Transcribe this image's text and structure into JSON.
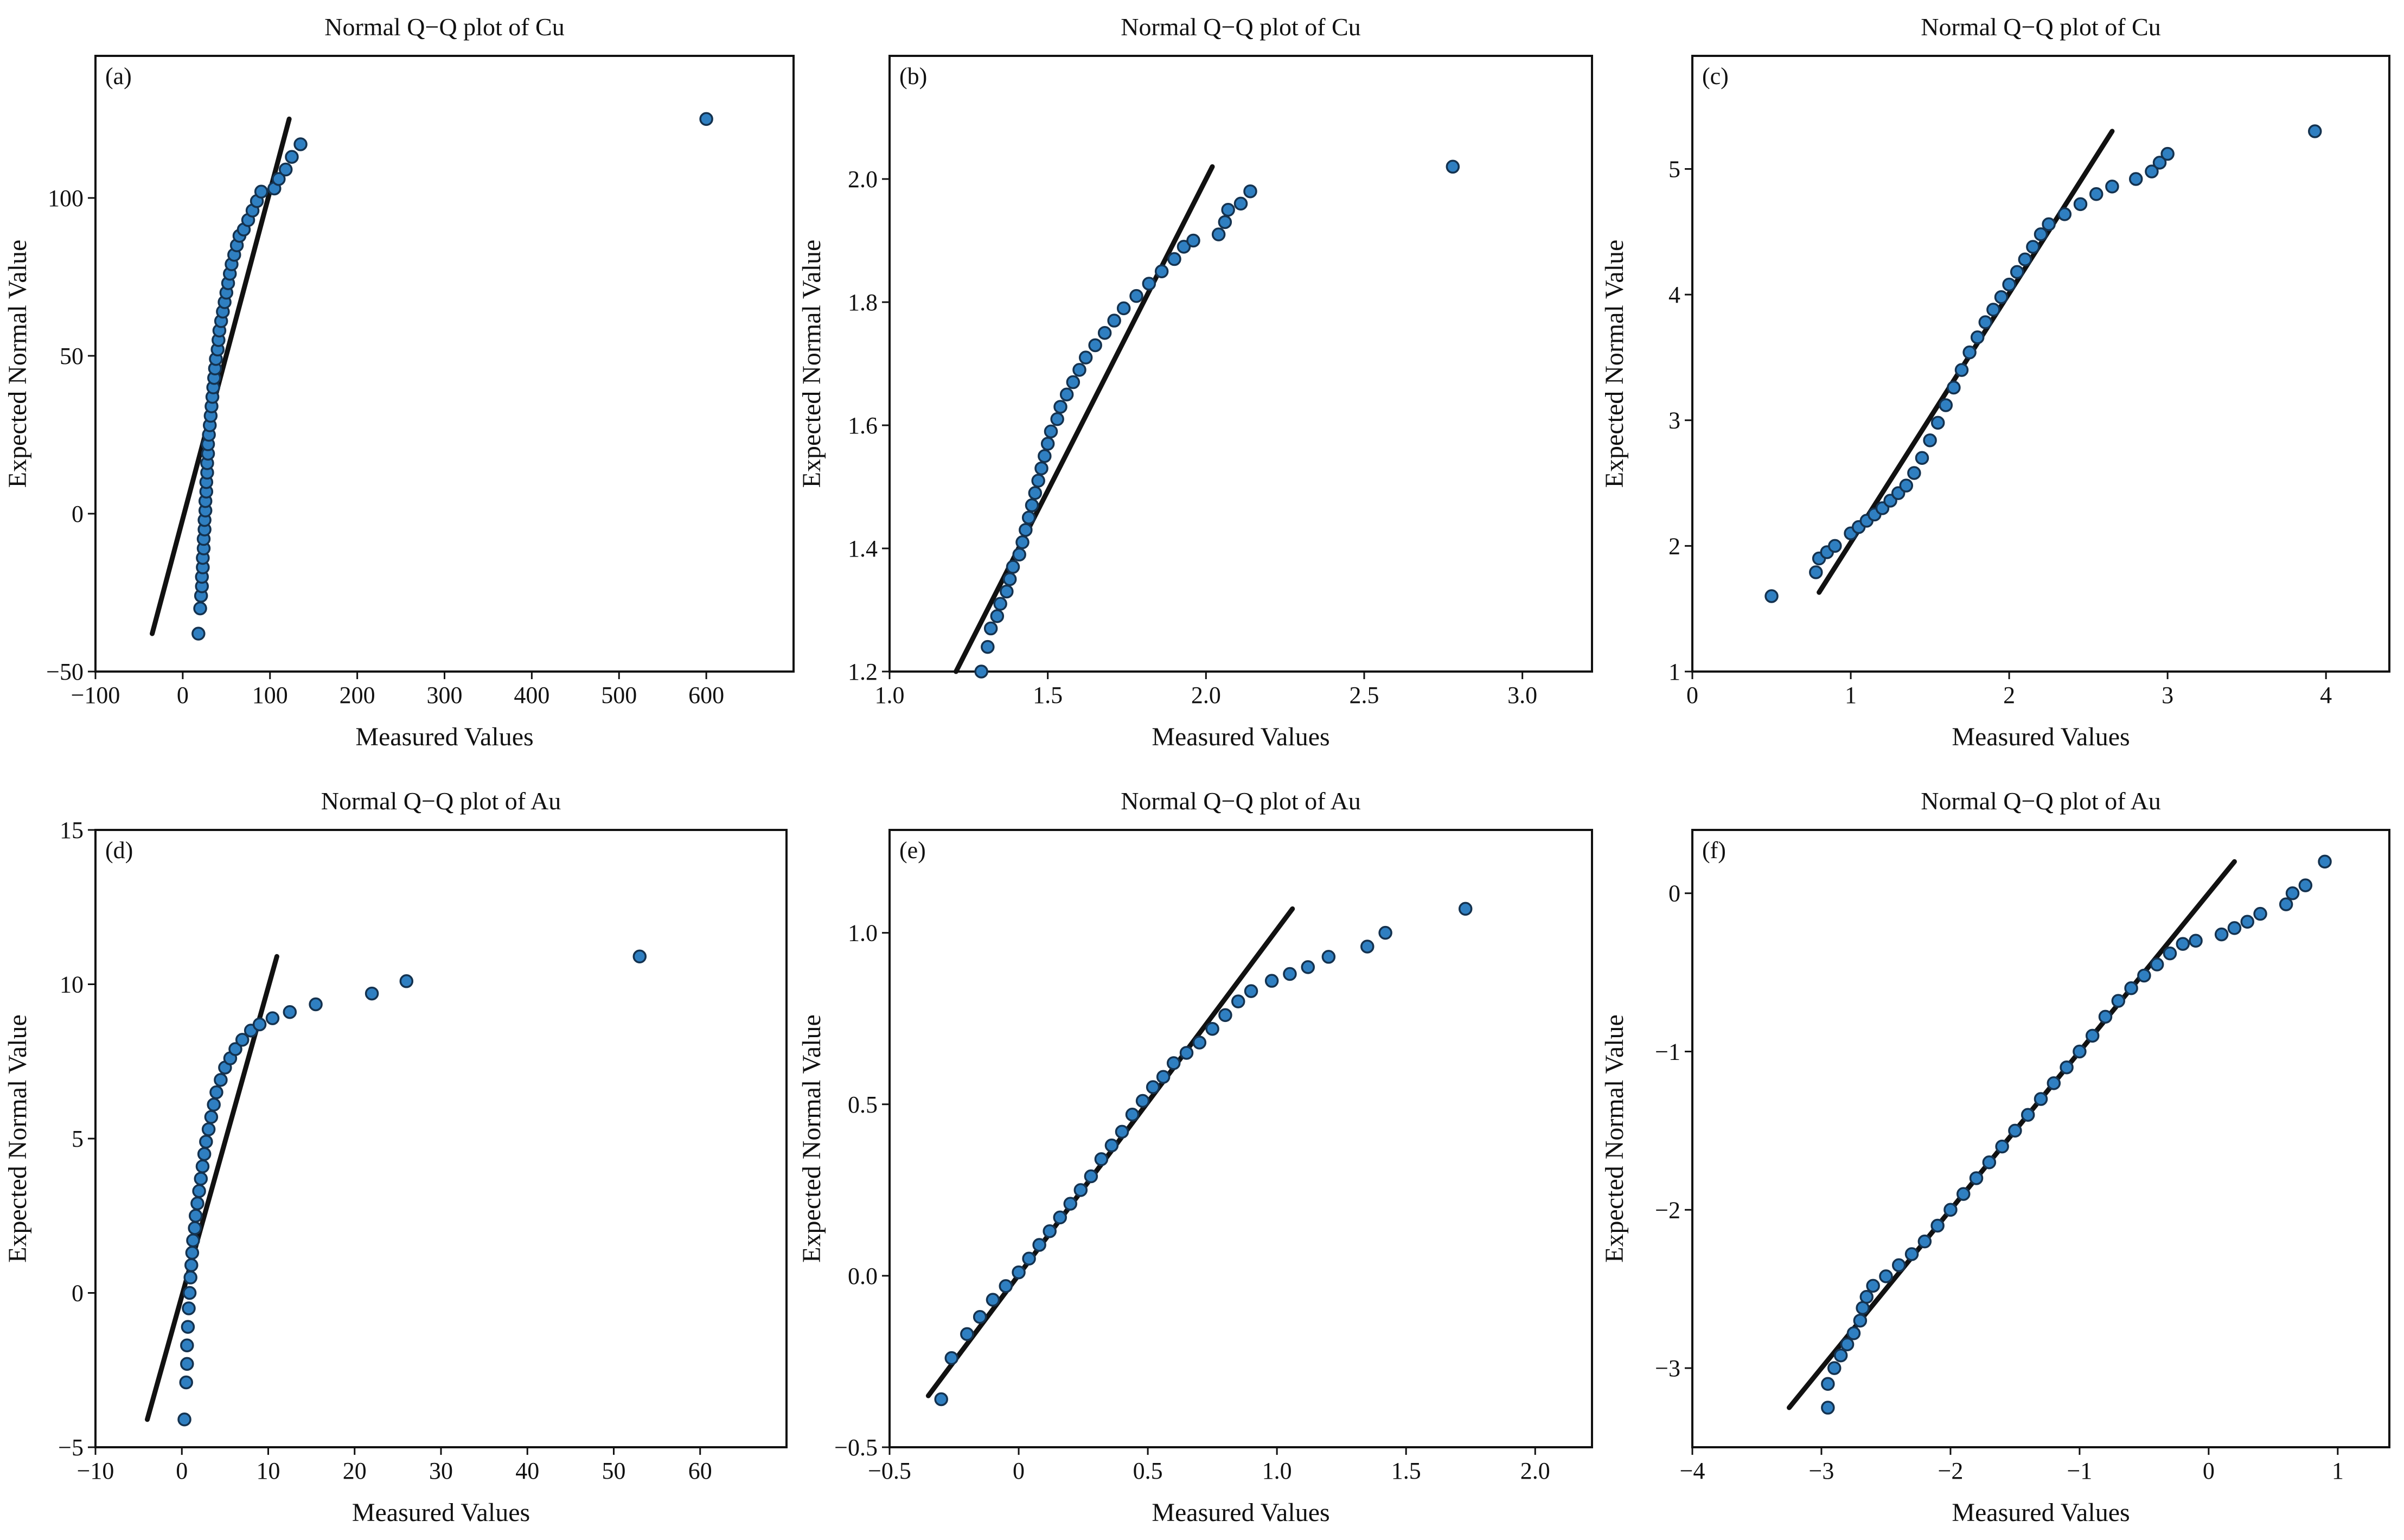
{
  "colors": {
    "marker": "#2f7fc1",
    "marker_edge": "#14324f",
    "line": "#111111",
    "axis": "#111111"
  },
  "chart_data": [
    {
      "type": "scatter",
      "panel": "(a)",
      "title": "Normal Q−Q plot of Cu",
      "xlabel": "Measured Values",
      "ylabel": "Expected Normal Value",
      "xlim": [
        -100,
        700
      ],
      "ylim": [
        -50,
        145
      ],
      "xticks": [
        -100,
        0,
        100,
        200,
        300,
        400,
        500,
        600
      ],
      "xtick_labels": [
        "−100",
        "0",
        "100",
        "200",
        "300",
        "400",
        "500",
        "600"
      ],
      "yticks": [
        -50,
        0,
        50,
        100
      ],
      "ytick_labels": [
        "−50",
        "0",
        "50",
        "100"
      ],
      "reference_line": [
        [
          -35,
          -38
        ],
        [
          122,
          125
        ]
      ],
      "points": [
        [
          18,
          -38
        ],
        [
          20,
          -30
        ],
        [
          21,
          -26
        ],
        [
          22,
          -23
        ],
        [
          22,
          -20
        ],
        [
          23,
          -17
        ],
        [
          23,
          -14
        ],
        [
          24,
          -11
        ],
        [
          24,
          -8
        ],
        [
          25,
          -5
        ],
        [
          25,
          -2
        ],
        [
          26,
          1
        ],
        [
          26,
          4
        ],
        [
          27,
          7
        ],
        [
          27,
          10
        ],
        [
          28,
          13
        ],
        [
          28,
          16
        ],
        [
          29,
          19
        ],
        [
          29,
          22
        ],
        [
          30,
          25
        ],
        [
          31,
          28
        ],
        [
          32,
          31
        ],
        [
          33,
          34
        ],
        [
          34,
          37
        ],
        [
          35,
          40
        ],
        [
          36,
          43
        ],
        [
          37,
          46
        ],
        [
          38,
          49
        ],
        [
          40,
          52
        ],
        [
          41,
          55
        ],
        [
          42,
          58
        ],
        [
          44,
          61
        ],
        [
          46,
          64
        ],
        [
          48,
          67
        ],
        [
          50,
          70
        ],
        [
          52,
          73
        ],
        [
          54,
          76
        ],
        [
          56,
          79
        ],
        [
          59,
          82
        ],
        [
          62,
          85
        ],
        [
          65,
          88
        ],
        [
          70,
          90
        ],
        [
          75,
          93
        ],
        [
          80,
          96
        ],
        [
          85,
          99
        ],
        [
          90,
          102
        ],
        [
          105,
          103
        ],
        [
          110,
          106
        ],
        [
          118,
          109
        ],
        [
          125,
          113
        ],
        [
          135,
          117
        ],
        [
          600,
          125
        ]
      ]
    },
    {
      "type": "scatter",
      "panel": "(b)",
      "title": "Normal Q−Q plot of Cu",
      "xlabel": "Measured Values",
      "ylabel": "Expected Normal Value",
      "xlim": [
        1.0,
        3.22
      ],
      "ylim": [
        1.2,
        2.2
      ],
      "xticks": [
        1.0,
        1.5,
        2.0,
        2.5,
        3.0
      ],
      "xtick_labels": [
        "1.0",
        "1.5",
        "2.0",
        "2.5",
        "3.0"
      ],
      "yticks": [
        1.2,
        1.4,
        1.6,
        1.8,
        2.0
      ],
      "ytick_labels": [
        "1.2",
        "1.4",
        "1.6",
        "1.8",
        "2.0"
      ],
      "reference_line": [
        [
          1.21,
          1.2
        ],
        [
          2.02,
          2.02
        ]
      ],
      "points": [
        [
          1.29,
          1.2
        ],
        [
          1.31,
          1.24
        ],
        [
          1.32,
          1.27
        ],
        [
          1.34,
          1.29
        ],
        [
          1.35,
          1.31
        ],
        [
          1.37,
          1.33
        ],
        [
          1.38,
          1.35
        ],
        [
          1.39,
          1.37
        ],
        [
          1.41,
          1.39
        ],
        [
          1.42,
          1.41
        ],
        [
          1.43,
          1.43
        ],
        [
          1.44,
          1.45
        ],
        [
          1.45,
          1.47
        ],
        [
          1.46,
          1.49
        ],
        [
          1.47,
          1.51
        ],
        [
          1.48,
          1.53
        ],
        [
          1.49,
          1.55
        ],
        [
          1.5,
          1.57
        ],
        [
          1.51,
          1.59
        ],
        [
          1.53,
          1.61
        ],
        [
          1.54,
          1.63
        ],
        [
          1.56,
          1.65
        ],
        [
          1.58,
          1.67
        ],
        [
          1.6,
          1.69
        ],
        [
          1.62,
          1.71
        ],
        [
          1.65,
          1.73
        ],
        [
          1.68,
          1.75
        ],
        [
          1.71,
          1.77
        ],
        [
          1.74,
          1.79
        ],
        [
          1.78,
          1.81
        ],
        [
          1.82,
          1.83
        ],
        [
          1.86,
          1.85
        ],
        [
          1.9,
          1.87
        ],
        [
          1.93,
          1.89
        ],
        [
          1.96,
          1.9
        ],
        [
          2.04,
          1.91
        ],
        [
          2.06,
          1.93
        ],
        [
          2.07,
          1.95
        ],
        [
          2.11,
          1.96
        ],
        [
          2.14,
          1.98
        ],
        [
          2.78,
          2.02
        ]
      ]
    },
    {
      "type": "scatter",
      "panel": "(c)",
      "title": "Normal Q−Q plot of Cu",
      "xlabel": "Measured Values",
      "ylabel": "Expected Normal Value",
      "xlim": [
        0,
        4.4
      ],
      "ylim": [
        1,
        5.9
      ],
      "xticks": [
        0,
        1,
        2,
        3,
        4
      ],
      "xtick_labels": [
        "0",
        "1",
        "2",
        "3",
        "4"
      ],
      "yticks": [
        1,
        2,
        3,
        4,
        5
      ],
      "ytick_labels": [
        "1",
        "2",
        "3",
        "4",
        "5"
      ],
      "reference_line": [
        [
          0.8,
          1.63
        ],
        [
          2.65,
          5.3
        ]
      ],
      "points": [
        [
          0.5,
          1.6
        ],
        [
          0.78,
          1.79
        ],
        [
          0.8,
          1.9
        ],
        [
          0.85,
          1.95
        ],
        [
          0.9,
          2.0
        ],
        [
          1.0,
          2.1
        ],
        [
          1.05,
          2.15
        ],
        [
          1.1,
          2.2
        ],
        [
          1.15,
          2.25
        ],
        [
          1.2,
          2.3
        ],
        [
          1.25,
          2.36
        ],
        [
          1.3,
          2.42
        ],
        [
          1.35,
          2.48
        ],
        [
          1.4,
          2.58
        ],
        [
          1.45,
          2.7
        ],
        [
          1.5,
          2.84
        ],
        [
          1.55,
          2.98
        ],
        [
          1.6,
          3.12
        ],
        [
          1.65,
          3.26
        ],
        [
          1.7,
          3.4
        ],
        [
          1.75,
          3.54
        ],
        [
          1.8,
          3.66
        ],
        [
          1.85,
          3.78
        ],
        [
          1.9,
          3.88
        ],
        [
          1.95,
          3.98
        ],
        [
          2.0,
          4.08
        ],
        [
          2.05,
          4.18
        ],
        [
          2.1,
          4.28
        ],
        [
          2.15,
          4.38
        ],
        [
          2.2,
          4.48
        ],
        [
          2.25,
          4.56
        ],
        [
          2.35,
          4.64
        ],
        [
          2.45,
          4.72
        ],
        [
          2.55,
          4.8
        ],
        [
          2.65,
          4.86
        ],
        [
          2.8,
          4.92
        ],
        [
          2.9,
          4.98
        ],
        [
          2.95,
          5.05
        ],
        [
          3.0,
          5.12
        ],
        [
          3.93,
          5.3
        ]
      ]
    },
    {
      "type": "scatter",
      "panel": "(d)",
      "title": "Normal Q−Q plot of Au",
      "xlabel": "Measured Values",
      "ylabel": "Expected Normal Value",
      "xlim": [
        -10,
        70
      ],
      "ylim": [
        -5,
        15
      ],
      "xticks": [
        -10,
        0,
        10,
        20,
        30,
        40,
        50,
        60
      ],
      "xtick_labels": [
        "−10",
        "0",
        "10",
        "20",
        "30",
        "40",
        "50",
        "60"
      ],
      "yticks": [
        -5,
        0,
        5,
        10,
        15
      ],
      "ytick_labels": [
        "−5",
        "0",
        "5",
        "10",
        "15"
      ],
      "reference_line": [
        [
          -4,
          -4.1
        ],
        [
          11,
          10.9
        ]
      ],
      "points": [
        [
          0.3,
          -4.1
        ],
        [
          0.5,
          -2.9
        ],
        [
          0.6,
          -2.3
        ],
        [
          0.6,
          -1.7
        ],
        [
          0.7,
          -1.1
        ],
        [
          0.8,
          -0.5
        ],
        [
          0.9,
          0.0
        ],
        [
          1.0,
          0.5
        ],
        [
          1.1,
          0.9
        ],
        [
          1.2,
          1.3
        ],
        [
          1.3,
          1.7
        ],
        [
          1.5,
          2.1
        ],
        [
          1.6,
          2.5
        ],
        [
          1.8,
          2.9
        ],
        [
          2.0,
          3.3
        ],
        [
          2.2,
          3.7
        ],
        [
          2.4,
          4.1
        ],
        [
          2.6,
          4.5
        ],
        [
          2.8,
          4.9
        ],
        [
          3.1,
          5.3
        ],
        [
          3.4,
          5.7
        ],
        [
          3.7,
          6.1
        ],
        [
          4.0,
          6.5
        ],
        [
          4.5,
          6.9
        ],
        [
          5.0,
          7.3
        ],
        [
          5.6,
          7.6
        ],
        [
          6.2,
          7.9
        ],
        [
          7.0,
          8.2
        ],
        [
          8.0,
          8.5
        ],
        [
          9.0,
          8.7
        ],
        [
          10.5,
          8.9
        ],
        [
          12.5,
          9.1
        ],
        [
          15.5,
          9.35
        ],
        [
          22,
          9.7
        ],
        [
          26,
          10.1
        ],
        [
          53,
          10.9
        ]
      ]
    },
    {
      "type": "scatter",
      "panel": "(e)",
      "title": "Normal Q−Q plot of Au",
      "xlabel": "Measured Values",
      "ylabel": "Expected Normal Value",
      "xlim": [
        -0.5,
        2.22
      ],
      "ylim": [
        -0.5,
        1.3
      ],
      "xticks": [
        -0.5,
        0,
        0.5,
        1.0,
        1.5,
        2.0
      ],
      "xtick_labels": [
        "−0.5",
        "0",
        "0.5",
        "1.0",
        "1.5",
        "2.0"
      ],
      "yticks": [
        -0.5,
        0,
        0.5,
        1.0
      ],
      "ytick_labels": [
        "−0.5",
        "0.0",
        "0.5",
        "1.0"
      ],
      "reference_line": [
        [
          -0.35,
          -0.35
        ],
        [
          1.06,
          1.07
        ]
      ],
      "points": [
        [
          -0.3,
          -0.36
        ],
        [
          -0.26,
          -0.24
        ],
        [
          -0.2,
          -0.17
        ],
        [
          -0.15,
          -0.12
        ],
        [
          -0.1,
          -0.07
        ],
        [
          -0.05,
          -0.03
        ],
        [
          0.0,
          0.01
        ],
        [
          0.04,
          0.05
        ],
        [
          0.08,
          0.09
        ],
        [
          0.12,
          0.13
        ],
        [
          0.16,
          0.17
        ],
        [
          0.2,
          0.21
        ],
        [
          0.24,
          0.25
        ],
        [
          0.28,
          0.29
        ],
        [
          0.32,
          0.34
        ],
        [
          0.36,
          0.38
        ],
        [
          0.4,
          0.42
        ],
        [
          0.44,
          0.47
        ],
        [
          0.48,
          0.51
        ],
        [
          0.52,
          0.55
        ],
        [
          0.56,
          0.58
        ],
        [
          0.6,
          0.62
        ],
        [
          0.65,
          0.65
        ],
        [
          0.7,
          0.68
        ],
        [
          0.75,
          0.72
        ],
        [
          0.8,
          0.76
        ],
        [
          0.85,
          0.8
        ],
        [
          0.9,
          0.83
        ],
        [
          0.98,
          0.86
        ],
        [
          1.05,
          0.88
        ],
        [
          1.12,
          0.9
        ],
        [
          1.2,
          0.93
        ],
        [
          1.35,
          0.96
        ],
        [
          1.42,
          1.0
        ],
        [
          1.73,
          1.07
        ]
      ]
    },
    {
      "type": "scatter",
      "panel": "(f)",
      "title": "Normal Q−Q plot of Au",
      "xlabel": "Measured Values",
      "ylabel": "Expected Normal Value",
      "xlim": [
        -4,
        1.4
      ],
      "ylim": [
        -3.5,
        0.4
      ],
      "xticks": [
        -4,
        -3,
        -2,
        -1,
        0,
        1
      ],
      "xtick_labels": [
        "−4",
        "−3",
        "−2",
        "−1",
        "0",
        "1"
      ],
      "yticks": [
        -3,
        -2,
        -1,
        0
      ],
      "ytick_labels": [
        "−3",
        "−2",
        "−1",
        "0"
      ],
      "reference_line": [
        [
          -3.25,
          -3.25
        ],
        [
          0.2,
          0.2
        ]
      ],
      "points": [
        [
          -2.95,
          -3.25
        ],
        [
          -2.95,
          -3.1
        ],
        [
          -2.9,
          -3.0
        ],
        [
          -2.85,
          -2.92
        ],
        [
          -2.8,
          -2.85
        ],
        [
          -2.75,
          -2.78
        ],
        [
          -2.7,
          -2.7
        ],
        [
          -2.68,
          -2.62
        ],
        [
          -2.65,
          -2.55
        ],
        [
          -2.6,
          -2.48
        ],
        [
          -2.5,
          -2.42
        ],
        [
          -2.4,
          -2.35
        ],
        [
          -2.3,
          -2.28
        ],
        [
          -2.2,
          -2.2
        ],
        [
          -2.1,
          -2.1
        ],
        [
          -2.0,
          -2.0
        ],
        [
          -1.9,
          -1.9
        ],
        [
          -1.8,
          -1.8
        ],
        [
          -1.7,
          -1.7
        ],
        [
          -1.6,
          -1.6
        ],
        [
          -1.5,
          -1.5
        ],
        [
          -1.4,
          -1.4
        ],
        [
          -1.3,
          -1.3
        ],
        [
          -1.2,
          -1.2
        ],
        [
          -1.1,
          -1.1
        ],
        [
          -1.0,
          -1.0
        ],
        [
          -0.9,
          -0.9
        ],
        [
          -0.8,
          -0.78
        ],
        [
          -0.7,
          -0.68
        ],
        [
          -0.6,
          -0.6
        ],
        [
          -0.5,
          -0.52
        ],
        [
          -0.4,
          -0.45
        ],
        [
          -0.3,
          -0.38
        ],
        [
          -0.2,
          -0.32
        ],
        [
          -0.1,
          -0.3
        ],
        [
          0.1,
          -0.26
        ],
        [
          0.2,
          -0.22
        ],
        [
          0.3,
          -0.18
        ],
        [
          0.4,
          -0.13
        ],
        [
          0.6,
          -0.07
        ],
        [
          0.65,
          0.0
        ],
        [
          0.75,
          0.05
        ],
        [
          0.9,
          0.2
        ]
      ]
    }
  ]
}
